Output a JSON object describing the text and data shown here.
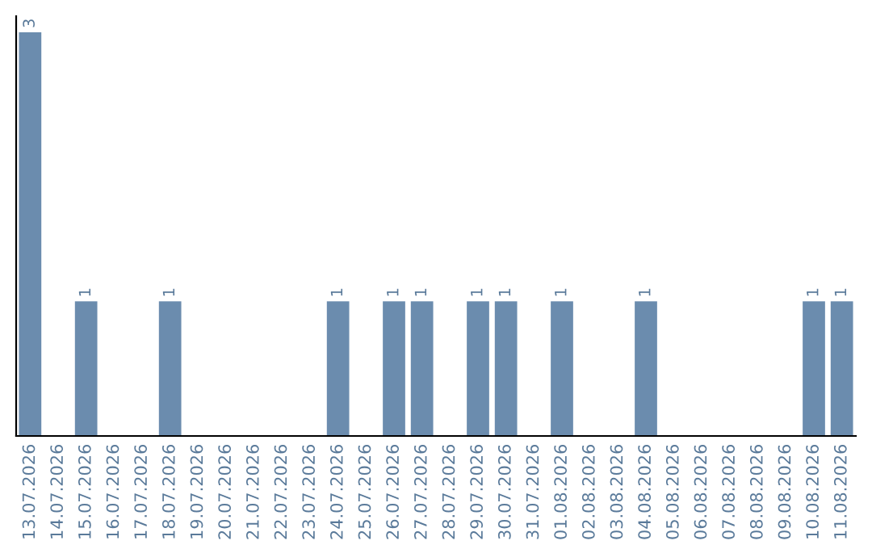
{
  "chart_data": {
    "type": "bar",
    "categories": [
      "13.07.2026",
      "14.07.2026",
      "15.07.2026",
      "16.07.2026",
      "17.07.2026",
      "18.07.2026",
      "19.07.2026",
      "20.07.2026",
      "21.07.2026",
      "22.07.2026",
      "23.07.2026",
      "24.07.2026",
      "25.07.2026",
      "26.07.2026",
      "27.07.2026",
      "28.07.2026",
      "29.07.2026",
      "30.07.2026",
      "31.07.2026",
      "01.08.2026",
      "02.08.2026",
      "03.08.2026",
      "04.08.2026",
      "05.08.2026",
      "06.08.2026",
      "07.08.2026",
      "08.08.2026",
      "09.08.2026",
      "10.08.2026",
      "11.08.2026"
    ],
    "values": [
      3,
      0,
      1,
      0,
      0,
      1,
      0,
      0,
      0,
      0,
      0,
      1,
      0,
      1,
      1,
      0,
      1,
      1,
      0,
      1,
      0,
      0,
      1,
      0,
      0,
      0,
      0,
      0,
      1,
      1
    ],
    "value_labels": [
      "3",
      null,
      "1",
      null,
      null,
      "1",
      null,
      null,
      null,
      null,
      null,
      "1",
      null,
      "1",
      "1",
      null,
      "1",
      "1",
      null,
      "1",
      null,
      null,
      "1",
      null,
      null,
      null,
      null,
      null,
      "1",
      "1"
    ],
    "color": "#6b8cae",
    "ylim": [
      0,
      3.12
    ],
    "tick_labels": "x",
    "grid": false,
    "legend": false
  }
}
